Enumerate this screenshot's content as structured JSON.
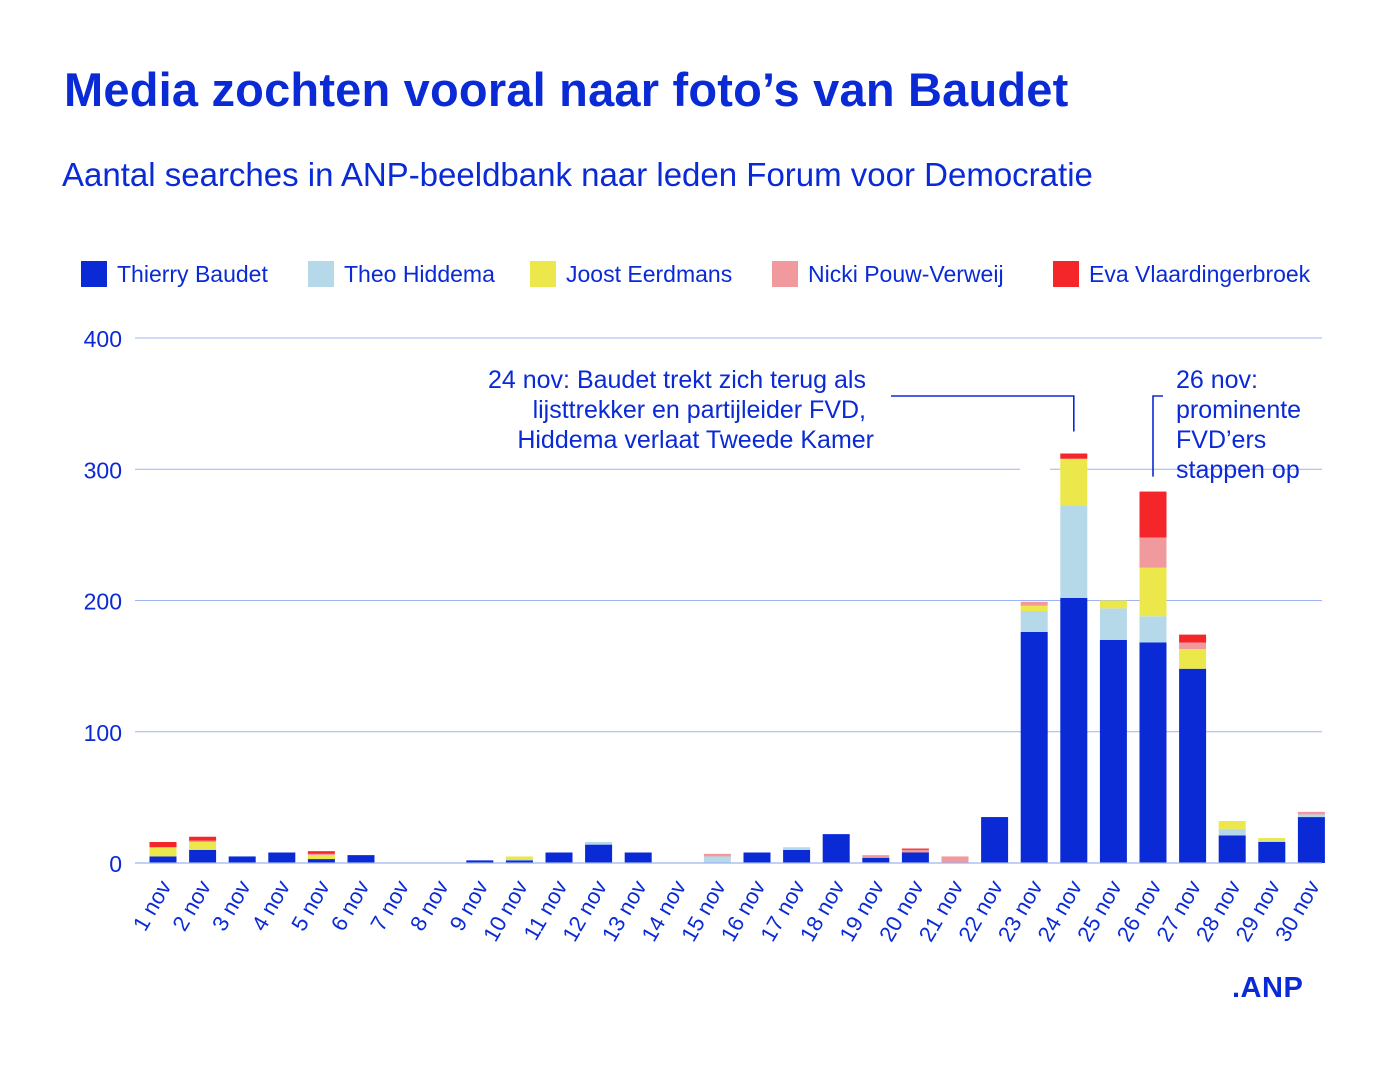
{
  "header": {
    "title": "Media zochten vooral naar foto’s van Baudet",
    "subtitle": "Aantal searches in ANP-beeldbank naar leden Forum voor Democratie"
  },
  "brand": ".ANP",
  "colors": {
    "accent": "#0a2ad6",
    "gridline": "#9fb3f0"
  },
  "chart_data": {
    "type": "bar",
    "stacked": true,
    "title": "Media zochten vooral naar foto’s van Baudet",
    "subtitle": "Aantal searches in ANP-beeldbank naar leden Forum voor Democratie",
    "xlabel": "",
    "ylabel": "",
    "ylim": [
      0,
      400
    ],
    "yticks": [
      0,
      100,
      200,
      300,
      400
    ],
    "grid": true,
    "legend_position": "top",
    "categories": [
      "1 nov",
      "2 nov",
      "3 nov",
      "4 nov",
      "5 nov",
      "6 nov",
      "7 nov",
      "8 nov",
      "9 nov",
      "10 nov",
      "11 nov",
      "12 nov",
      "13 nov",
      "14 nov",
      "15 nov",
      "16 nov",
      "17 nov",
      "18 nov",
      "19 nov",
      "20 nov",
      "21 nov",
      "22 nov",
      "23 nov",
      "24 nov",
      "25 nov",
      "26 nov",
      "27 nov",
      "28 nov",
      "29 nov",
      "30 nov"
    ],
    "series": [
      {
        "name": "Thierry Baudet",
        "color": "#0a2ad6",
        "values": [
          5,
          10,
          5,
          8,
          3,
          6,
          0,
          0,
          2,
          2,
          8,
          14,
          8,
          0,
          0,
          8,
          10,
          22,
          4,
          8,
          0,
          35,
          176,
          202,
          170,
          168,
          148,
          21,
          16,
          35
        ]
      },
      {
        "name": "Theo Hiddema",
        "color": "#b6d9ea",
        "values": [
          0,
          0,
          0,
          0,
          0,
          0,
          0,
          0,
          0,
          1,
          0,
          2,
          0,
          0,
          5,
          0,
          2,
          0,
          0,
          0,
          0,
          0,
          16,
          70,
          24,
          20,
          0,
          5,
          1,
          2
        ]
      },
      {
        "name": "Joost Eerdmans",
        "color": "#ece84c",
        "values": [
          7,
          6,
          0,
          0,
          3,
          0,
          0,
          0,
          0,
          2,
          0,
          0,
          0,
          0,
          0,
          0,
          0,
          0,
          0,
          0,
          0,
          0,
          4,
          36,
          6,
          37,
          15,
          6,
          2,
          0
        ]
      },
      {
        "name": "Nicki Pouw-Verweij",
        "color": "#f09a9e",
        "values": [
          0,
          1,
          0,
          0,
          1,
          0,
          0,
          0,
          0,
          0,
          0,
          0,
          0,
          0,
          2,
          0,
          0,
          0,
          2,
          2,
          5,
          0,
          3,
          0,
          0,
          23,
          5,
          0,
          0,
          2
        ]
      },
      {
        "name": "Eva Vlaardingerbroek",
        "color": "#f5262a",
        "values": [
          4,
          3,
          0,
          0,
          2,
          0,
          0,
          0,
          0,
          0,
          0,
          0,
          0,
          0,
          0,
          0,
          0,
          0,
          0,
          1,
          0,
          0,
          0,
          4,
          0,
          35,
          6,
          0,
          0,
          0
        ]
      }
    ],
    "annotations": [
      {
        "category": "24 nov",
        "lines": [
          "24 nov: Baudet trekt zich terug als",
          "lijsttrekker en partijleider FVD,",
          "Hiddema verlaat Tweede Kamer"
        ]
      },
      {
        "category": "26 nov",
        "lines": [
          "26 nov:",
          "prominente",
          "FVD’ers",
          "stappen op"
        ]
      }
    ]
  }
}
